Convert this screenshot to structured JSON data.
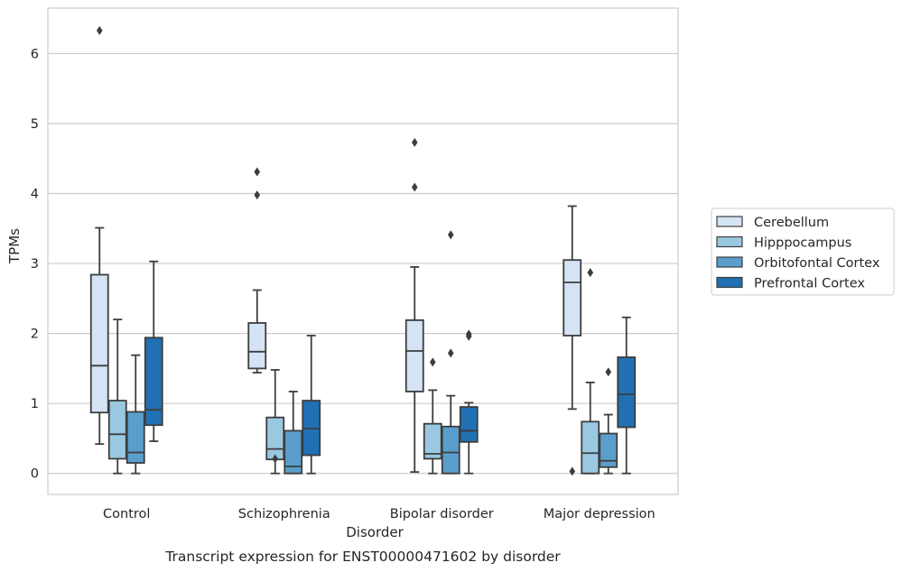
{
  "chart_data": {
    "type": "box",
    "caption": "Transcript expression for ENST00000471602 by disorder",
    "xlabel": "Disorder",
    "ylabel": "TPMs",
    "ylim": [
      -0.3,
      6.65
    ],
    "yticks": [
      0,
      1,
      2,
      3,
      4,
      5,
      6
    ],
    "grid": true,
    "legend_position": "right",
    "categories": [
      "Control",
      "Schizophrenia",
      "Bipolar disorder",
      "Major depression"
    ],
    "series": [
      {
        "name": "Cerebellum",
        "color": "#d4e4f4",
        "boxes": [
          {
            "whislo": 0.42,
            "q1": 0.87,
            "med": 1.54,
            "q3": 2.84,
            "whishi": 3.51,
            "fliers": [
              6.33
            ]
          },
          {
            "whislo": 1.44,
            "q1": 1.5,
            "med": 1.74,
            "q3": 2.15,
            "whishi": 2.62,
            "fliers": [
              3.98,
              4.31
            ]
          },
          {
            "whislo": 0.02,
            "q1": 1.17,
            "med": 1.75,
            "q3": 2.19,
            "whishi": 2.95,
            "fliers": [
              4.09,
              4.73
            ]
          },
          {
            "whislo": 0.92,
            "q1": 1.97,
            "med": 2.73,
            "q3": 3.05,
            "whishi": 3.82,
            "fliers": [
              0.03
            ]
          }
        ]
      },
      {
        "name": "Hipppocampus",
        "color": "#9ac8e0",
        "boxes": [
          {
            "whislo": 0.0,
            "q1": 0.21,
            "med": 0.56,
            "q3": 1.04,
            "whishi": 2.2,
            "fliers": []
          },
          {
            "whislo": 0.0,
            "q1": 0.2,
            "med": 0.35,
            "q3": 0.8,
            "whishi": 1.48,
            "fliers": [
              0.21
            ]
          },
          {
            "whislo": 0.0,
            "q1": 0.21,
            "med": 0.28,
            "q3": 0.71,
            "whishi": 1.19,
            "fliers": [
              1.59
            ]
          },
          {
            "whislo": 0.0,
            "q1": 0.0,
            "med": 0.29,
            "q3": 0.74,
            "whishi": 1.3,
            "fliers": [
              2.87
            ]
          }
        ]
      },
      {
        "name": "Orbitofontal Cortex",
        "color": "#5a9ecc",
        "boxes": [
          {
            "whislo": 0.0,
            "q1": 0.15,
            "med": 0.3,
            "q3": 0.88,
            "whishi": 1.69,
            "fliers": []
          },
          {
            "whislo": 0.0,
            "q1": 0.0,
            "med": 0.1,
            "q3": 0.61,
            "whishi": 1.17,
            "fliers": []
          },
          {
            "whislo": 0.0,
            "q1": 0.0,
            "med": 0.3,
            "q3": 0.67,
            "whishi": 1.11,
            "fliers": [
              1.72,
              3.41
            ]
          },
          {
            "whislo": 0.0,
            "q1": 0.09,
            "med": 0.18,
            "q3": 0.57,
            "whishi": 0.84,
            "fliers": [
              1.45
            ]
          }
        ]
      },
      {
        "name": "Prefrontal Cortex",
        "color": "#2070b3",
        "boxes": [
          {
            "whislo": 0.46,
            "q1": 0.69,
            "med": 0.91,
            "q3": 1.94,
            "whishi": 3.03,
            "fliers": []
          },
          {
            "whislo": 0.0,
            "q1": 0.26,
            "med": 0.64,
            "q3": 1.04,
            "whishi": 1.97,
            "fliers": []
          },
          {
            "whislo": 0.0,
            "q1": 0.45,
            "med": 0.61,
            "q3": 0.95,
            "whishi": 1.01,
            "fliers": [
              1.96,
              1.99
            ]
          },
          {
            "whislo": 0.0,
            "q1": 0.66,
            "med": 1.13,
            "q3": 1.66,
            "whishi": 2.23,
            "fliers": []
          }
        ]
      }
    ]
  }
}
